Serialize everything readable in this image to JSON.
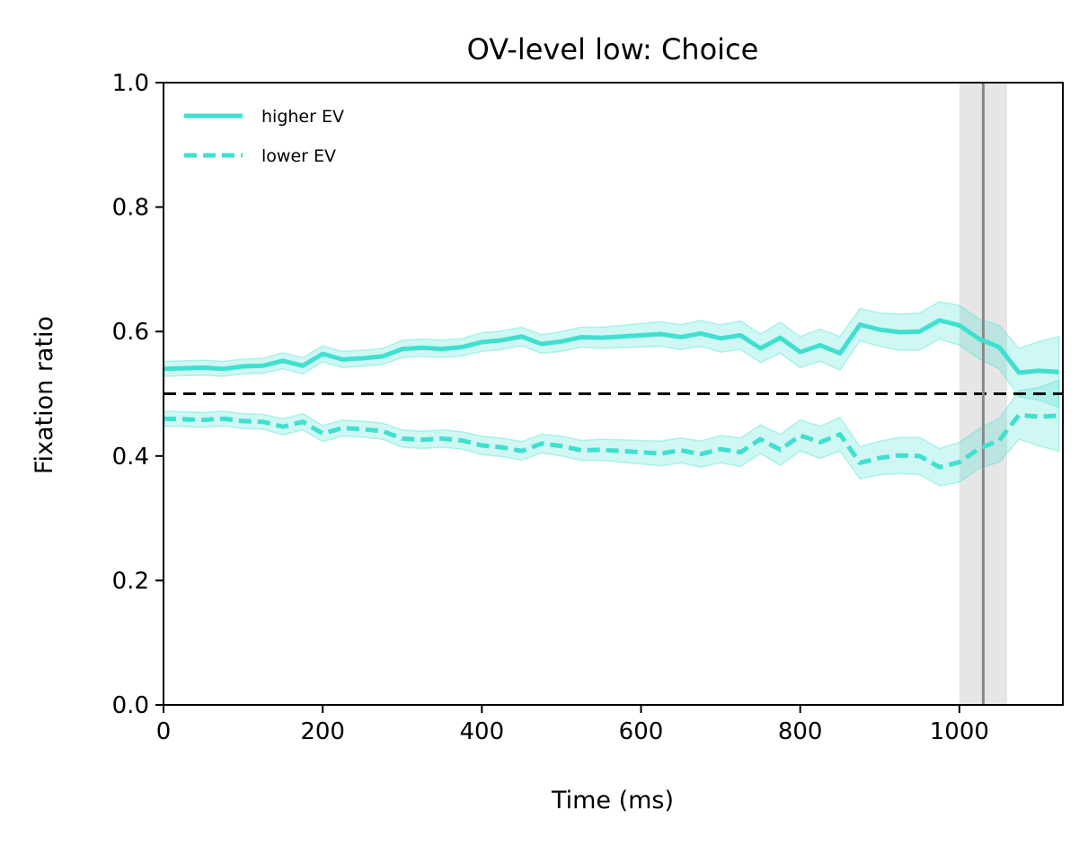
{
  "chart_data": {
    "type": "line",
    "title": "OV-level low: Choice",
    "xlabel": "Time (ms)",
    "ylabel": "Fixation ratio",
    "xlim": [
      0,
      1130
    ],
    "ylim": [
      0,
      1
    ],
    "xticks": [
      0,
      200,
      400,
      600,
      800,
      1000
    ],
    "yticks": [
      0.0,
      0.2,
      0.4,
      0.6,
      0.8,
      1.0
    ],
    "xtick_labels": [
      "0",
      "200",
      "400",
      "600",
      "800",
      "1000"
    ],
    "ytick_labels": [
      "0.0",
      "0.2",
      "0.4",
      "0.6",
      "0.8",
      "1.0"
    ],
    "grid": false,
    "legend": {
      "position": "top-left",
      "frame": false
    },
    "x": [
      0,
      25,
      50,
      75,
      100,
      125,
      150,
      175,
      200,
      225,
      250,
      275,
      300,
      325,
      350,
      375,
      400,
      425,
      450,
      475,
      500,
      525,
      550,
      575,
      600,
      625,
      650,
      675,
      700,
      725,
      750,
      775,
      800,
      825,
      850,
      875,
      900,
      925,
      950,
      975,
      1000,
      1025,
      1050,
      1075,
      1100,
      1125
    ],
    "series": [
      {
        "name": "higher EV",
        "linestyle": "solid",
        "color": "#40e0d0",
        "values": [
          0.54,
          0.541,
          0.542,
          0.54,
          0.544,
          0.545,
          0.553,
          0.545,
          0.564,
          0.555,
          0.557,
          0.56,
          0.572,
          0.574,
          0.572,
          0.575,
          0.583,
          0.586,
          0.592,
          0.58,
          0.584,
          0.591,
          0.59,
          0.592,
          0.594,
          0.596,
          0.591,
          0.597,
          0.589,
          0.594,
          0.573,
          0.59,
          0.567,
          0.578,
          0.565,
          0.611,
          0.603,
          0.599,
          0.6,
          0.618,
          0.61,
          0.588,
          0.575,
          0.534,
          0.537,
          0.535
        ],
        "ci_lower": [
          0.528,
          0.529,
          0.53,
          0.528,
          0.532,
          0.533,
          0.54,
          0.532,
          0.551,
          0.542,
          0.544,
          0.547,
          0.558,
          0.56,
          0.558,
          0.561,
          0.568,
          0.571,
          0.577,
          0.565,
          0.568,
          0.575,
          0.573,
          0.574,
          0.575,
          0.576,
          0.571,
          0.576,
          0.567,
          0.571,
          0.55,
          0.565,
          0.542,
          0.552,
          0.538,
          0.585,
          0.576,
          0.57,
          0.57,
          0.588,
          0.578,
          0.556,
          0.54,
          0.495,
          0.49,
          0.478
        ],
        "ci_upper": [
          0.552,
          0.553,
          0.554,
          0.552,
          0.556,
          0.557,
          0.566,
          0.558,
          0.577,
          0.568,
          0.57,
          0.573,
          0.586,
          0.588,
          0.586,
          0.589,
          0.598,
          0.601,
          0.607,
          0.595,
          0.6,
          0.607,
          0.607,
          0.61,
          0.613,
          0.616,
          0.611,
          0.618,
          0.611,
          0.617,
          0.596,
          0.615,
          0.592,
          0.604,
          0.592,
          0.637,
          0.63,
          0.628,
          0.63,
          0.648,
          0.642,
          0.62,
          0.61,
          0.573,
          0.584,
          0.592
        ]
      },
      {
        "name": "lower EV",
        "linestyle": "dashed",
        "color": "#40e0d0",
        "values": [
          0.46,
          0.459,
          0.458,
          0.46,
          0.456,
          0.455,
          0.447,
          0.455,
          0.436,
          0.445,
          0.443,
          0.44,
          0.428,
          0.426,
          0.428,
          0.425,
          0.417,
          0.414,
          0.408,
          0.42,
          0.416,
          0.409,
          0.41,
          0.408,
          0.406,
          0.404,
          0.409,
          0.403,
          0.411,
          0.406,
          0.427,
          0.41,
          0.433,
          0.422,
          0.435,
          0.389,
          0.397,
          0.401,
          0.4,
          0.382,
          0.39,
          0.412,
          0.425,
          0.466,
          0.463,
          0.465
        ],
        "ci_lower": [
          0.448,
          0.447,
          0.446,
          0.448,
          0.444,
          0.443,
          0.434,
          0.442,
          0.423,
          0.432,
          0.43,
          0.427,
          0.414,
          0.412,
          0.414,
          0.411,
          0.402,
          0.399,
          0.393,
          0.405,
          0.4,
          0.393,
          0.393,
          0.39,
          0.387,
          0.384,
          0.389,
          0.382,
          0.389,
          0.383,
          0.404,
          0.385,
          0.408,
          0.396,
          0.408,
          0.363,
          0.37,
          0.372,
          0.37,
          0.352,
          0.358,
          0.38,
          0.39,
          0.427,
          0.416,
          0.408
        ],
        "ci_upper": [
          0.472,
          0.471,
          0.47,
          0.472,
          0.468,
          0.467,
          0.46,
          0.468,
          0.449,
          0.458,
          0.456,
          0.453,
          0.442,
          0.44,
          0.442,
          0.439,
          0.432,
          0.429,
          0.423,
          0.435,
          0.432,
          0.425,
          0.427,
          0.426,
          0.425,
          0.424,
          0.429,
          0.424,
          0.433,
          0.429,
          0.45,
          0.435,
          0.458,
          0.448,
          0.462,
          0.415,
          0.424,
          0.43,
          0.43,
          0.412,
          0.422,
          0.444,
          0.46,
          0.505,
          0.51,
          0.522
        ]
      }
    ],
    "reference_lines": [
      {
        "orientation": "horizontal",
        "y": 0.5,
        "linestyle": "dashed",
        "color": "#000000"
      },
      {
        "orientation": "vertical",
        "x": 1030,
        "linestyle": "solid",
        "color": "#888888",
        "band": [
          1000,
          1060
        ],
        "band_color": "#e6e6e6"
      }
    ]
  }
}
